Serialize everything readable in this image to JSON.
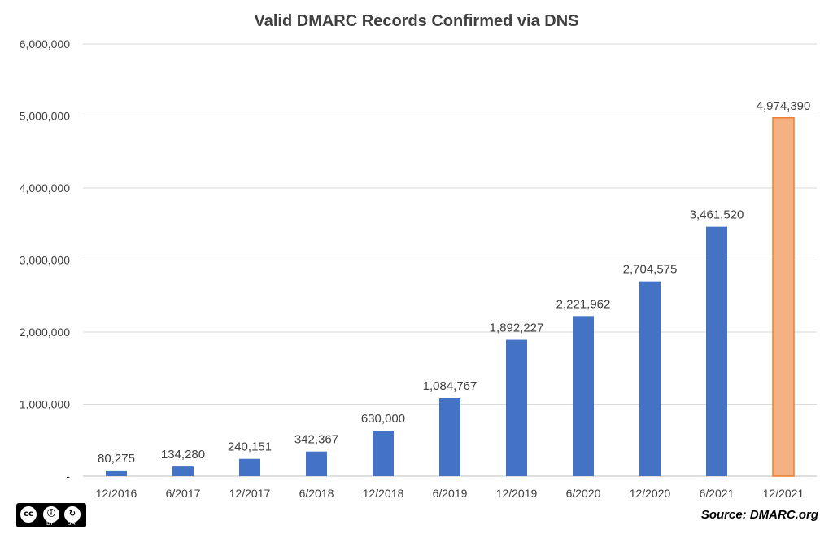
{
  "chart_data": {
    "type": "bar",
    "title": "Valid DMARC Records Confirmed via DNS",
    "categories": [
      "12/2016",
      "6/2017",
      "12/2017",
      "6/2018",
      "12/2018",
      "6/2019",
      "12/2019",
      "6/2020",
      "12/2020",
      "6/2021",
      "12/2021"
    ],
    "values": [
      80275,
      134280,
      240151,
      342367,
      630000,
      1084767,
      1892227,
      2221962,
      2704575,
      3461520,
      4974390
    ],
    "data_labels": [
      "80,275",
      "134,280",
      "240,151",
      "342,367",
      "630,000",
      "1,084,767",
      "1,892,227",
      "2,221,962",
      "2,704,575",
      "3,461,520",
      "4,974,390"
    ],
    "y_ticks": [
      "-",
      "1,000,000",
      "2,000,000",
      "3,000,000",
      "4,000,000",
      "5,000,000",
      "6,000,000"
    ],
    "ylim": [
      0,
      6000000
    ],
    "grid": true,
    "colors": {
      "bar": "#4472C4",
      "highlight": "#F4B183",
      "highlight_edge": "#ED7D31"
    },
    "highlight_index": 10
  },
  "footer": {
    "source": "Source: DMARC.org",
    "license_icon": "cc-by-sa-badge",
    "license_text": {
      "by": "BY",
      "sa": "SA"
    }
  }
}
